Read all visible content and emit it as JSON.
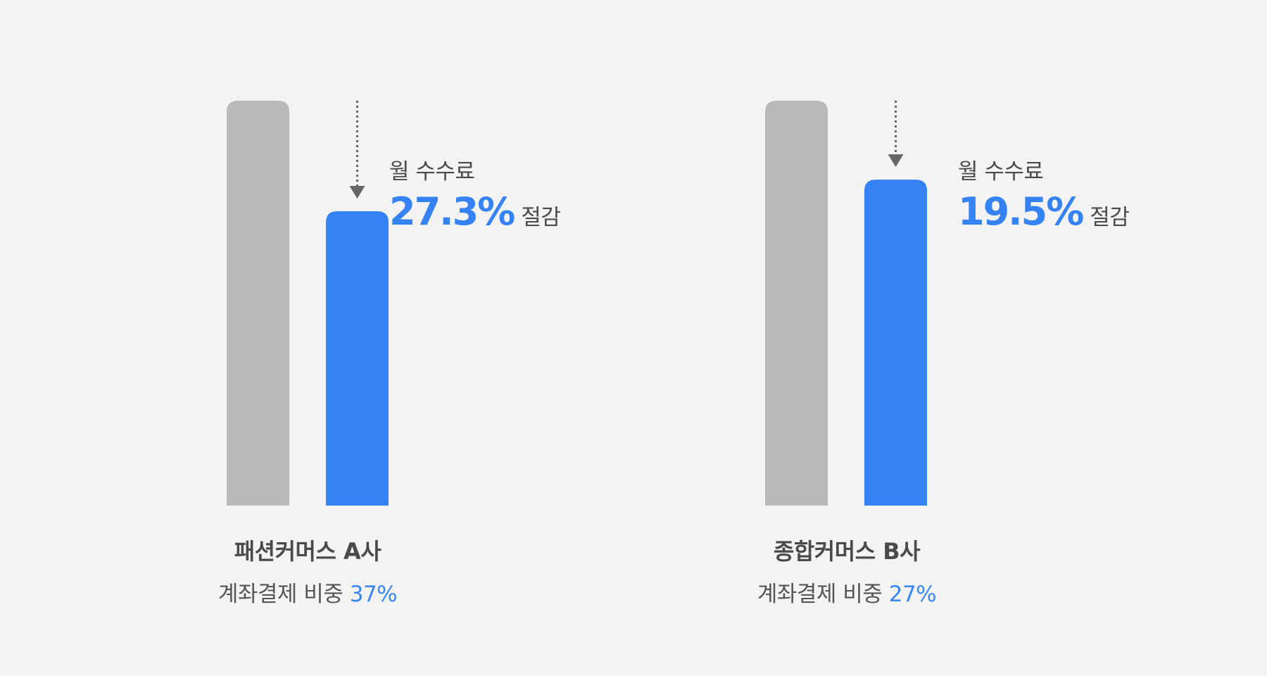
{
  "colors": {
    "background": "#f3f3f3",
    "before_bar": "#b9b9b9",
    "after_bar": "#3582f4",
    "arrow": "#666666",
    "accent_text": "#3582f4"
  },
  "chart_data": [
    {
      "type": "bar",
      "categories": [
        "before",
        "after"
      ],
      "values": [
        100,
        72.7
      ],
      "ylim": [
        0,
        100
      ],
      "company": "패션커머스 A사",
      "share_label": "계좌결제 비중",
      "share_value": "37%",
      "annotation": {
        "label": "월 수수료",
        "value": "27.3%",
        "suffix": "절감"
      }
    },
    {
      "type": "bar",
      "categories": [
        "before",
        "after"
      ],
      "values": [
        100,
        80.5
      ],
      "ylim": [
        0,
        100
      ],
      "company": "종합커머스 B사",
      "share_label": "계좌결제 비중",
      "share_value": "27%",
      "annotation": {
        "label": "월 수수료",
        "value": "19.5%",
        "suffix": "절감"
      }
    }
  ]
}
